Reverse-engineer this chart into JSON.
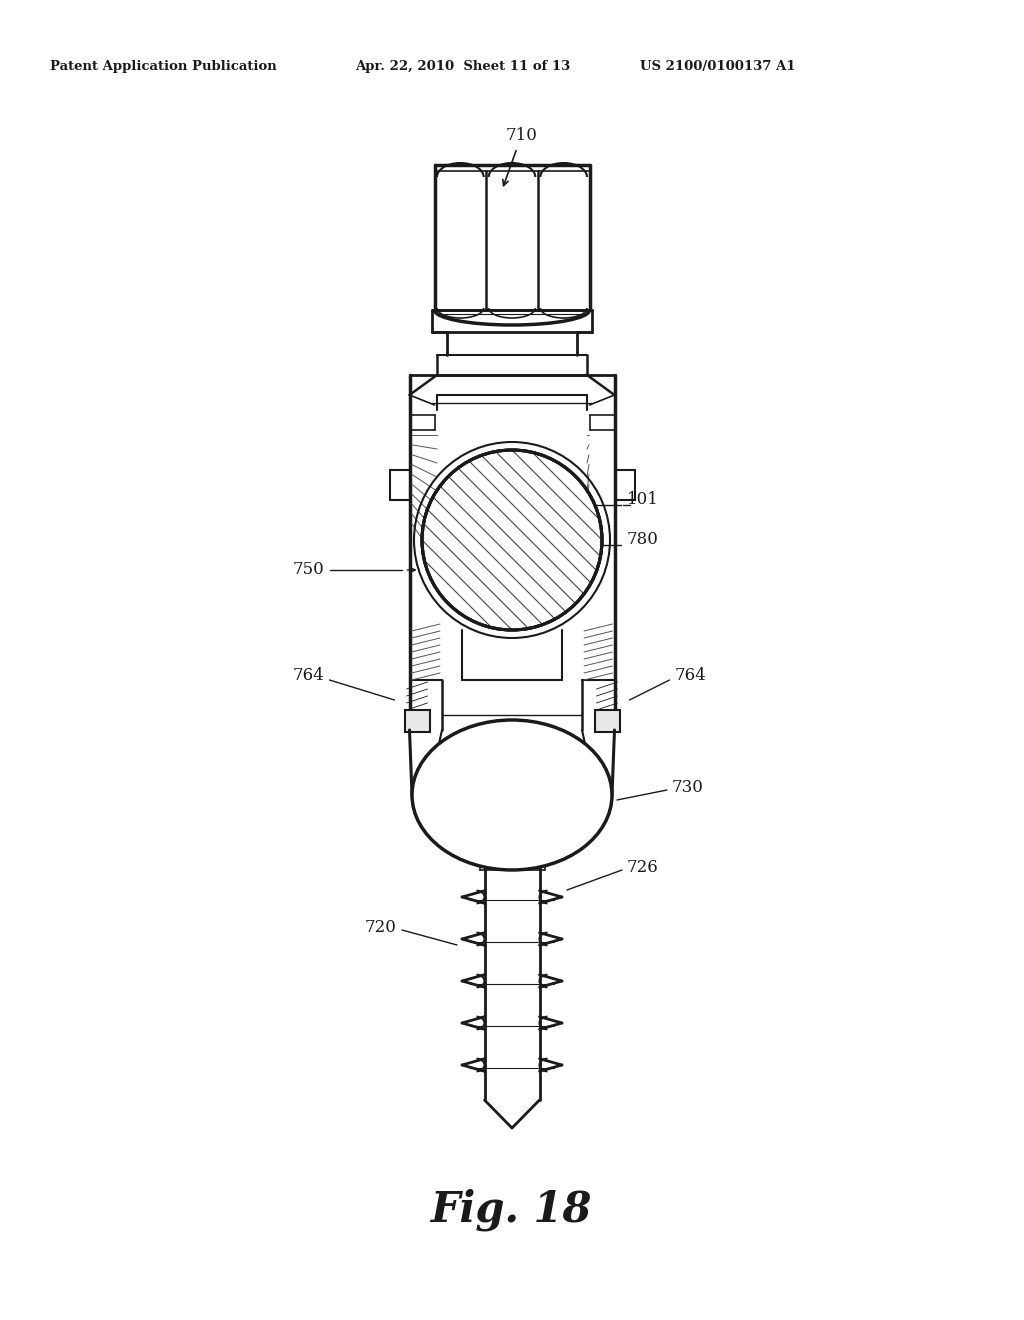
{
  "title_left": "Patent Application Publication",
  "title_mid": "Apr. 22, 2010  Sheet 11 of 13",
  "title_right": "US 2100/0100137 A1",
  "fig_label": "Fig. 18",
  "bg_color": "#ffffff",
  "line_color": "#1a1a1a"
}
